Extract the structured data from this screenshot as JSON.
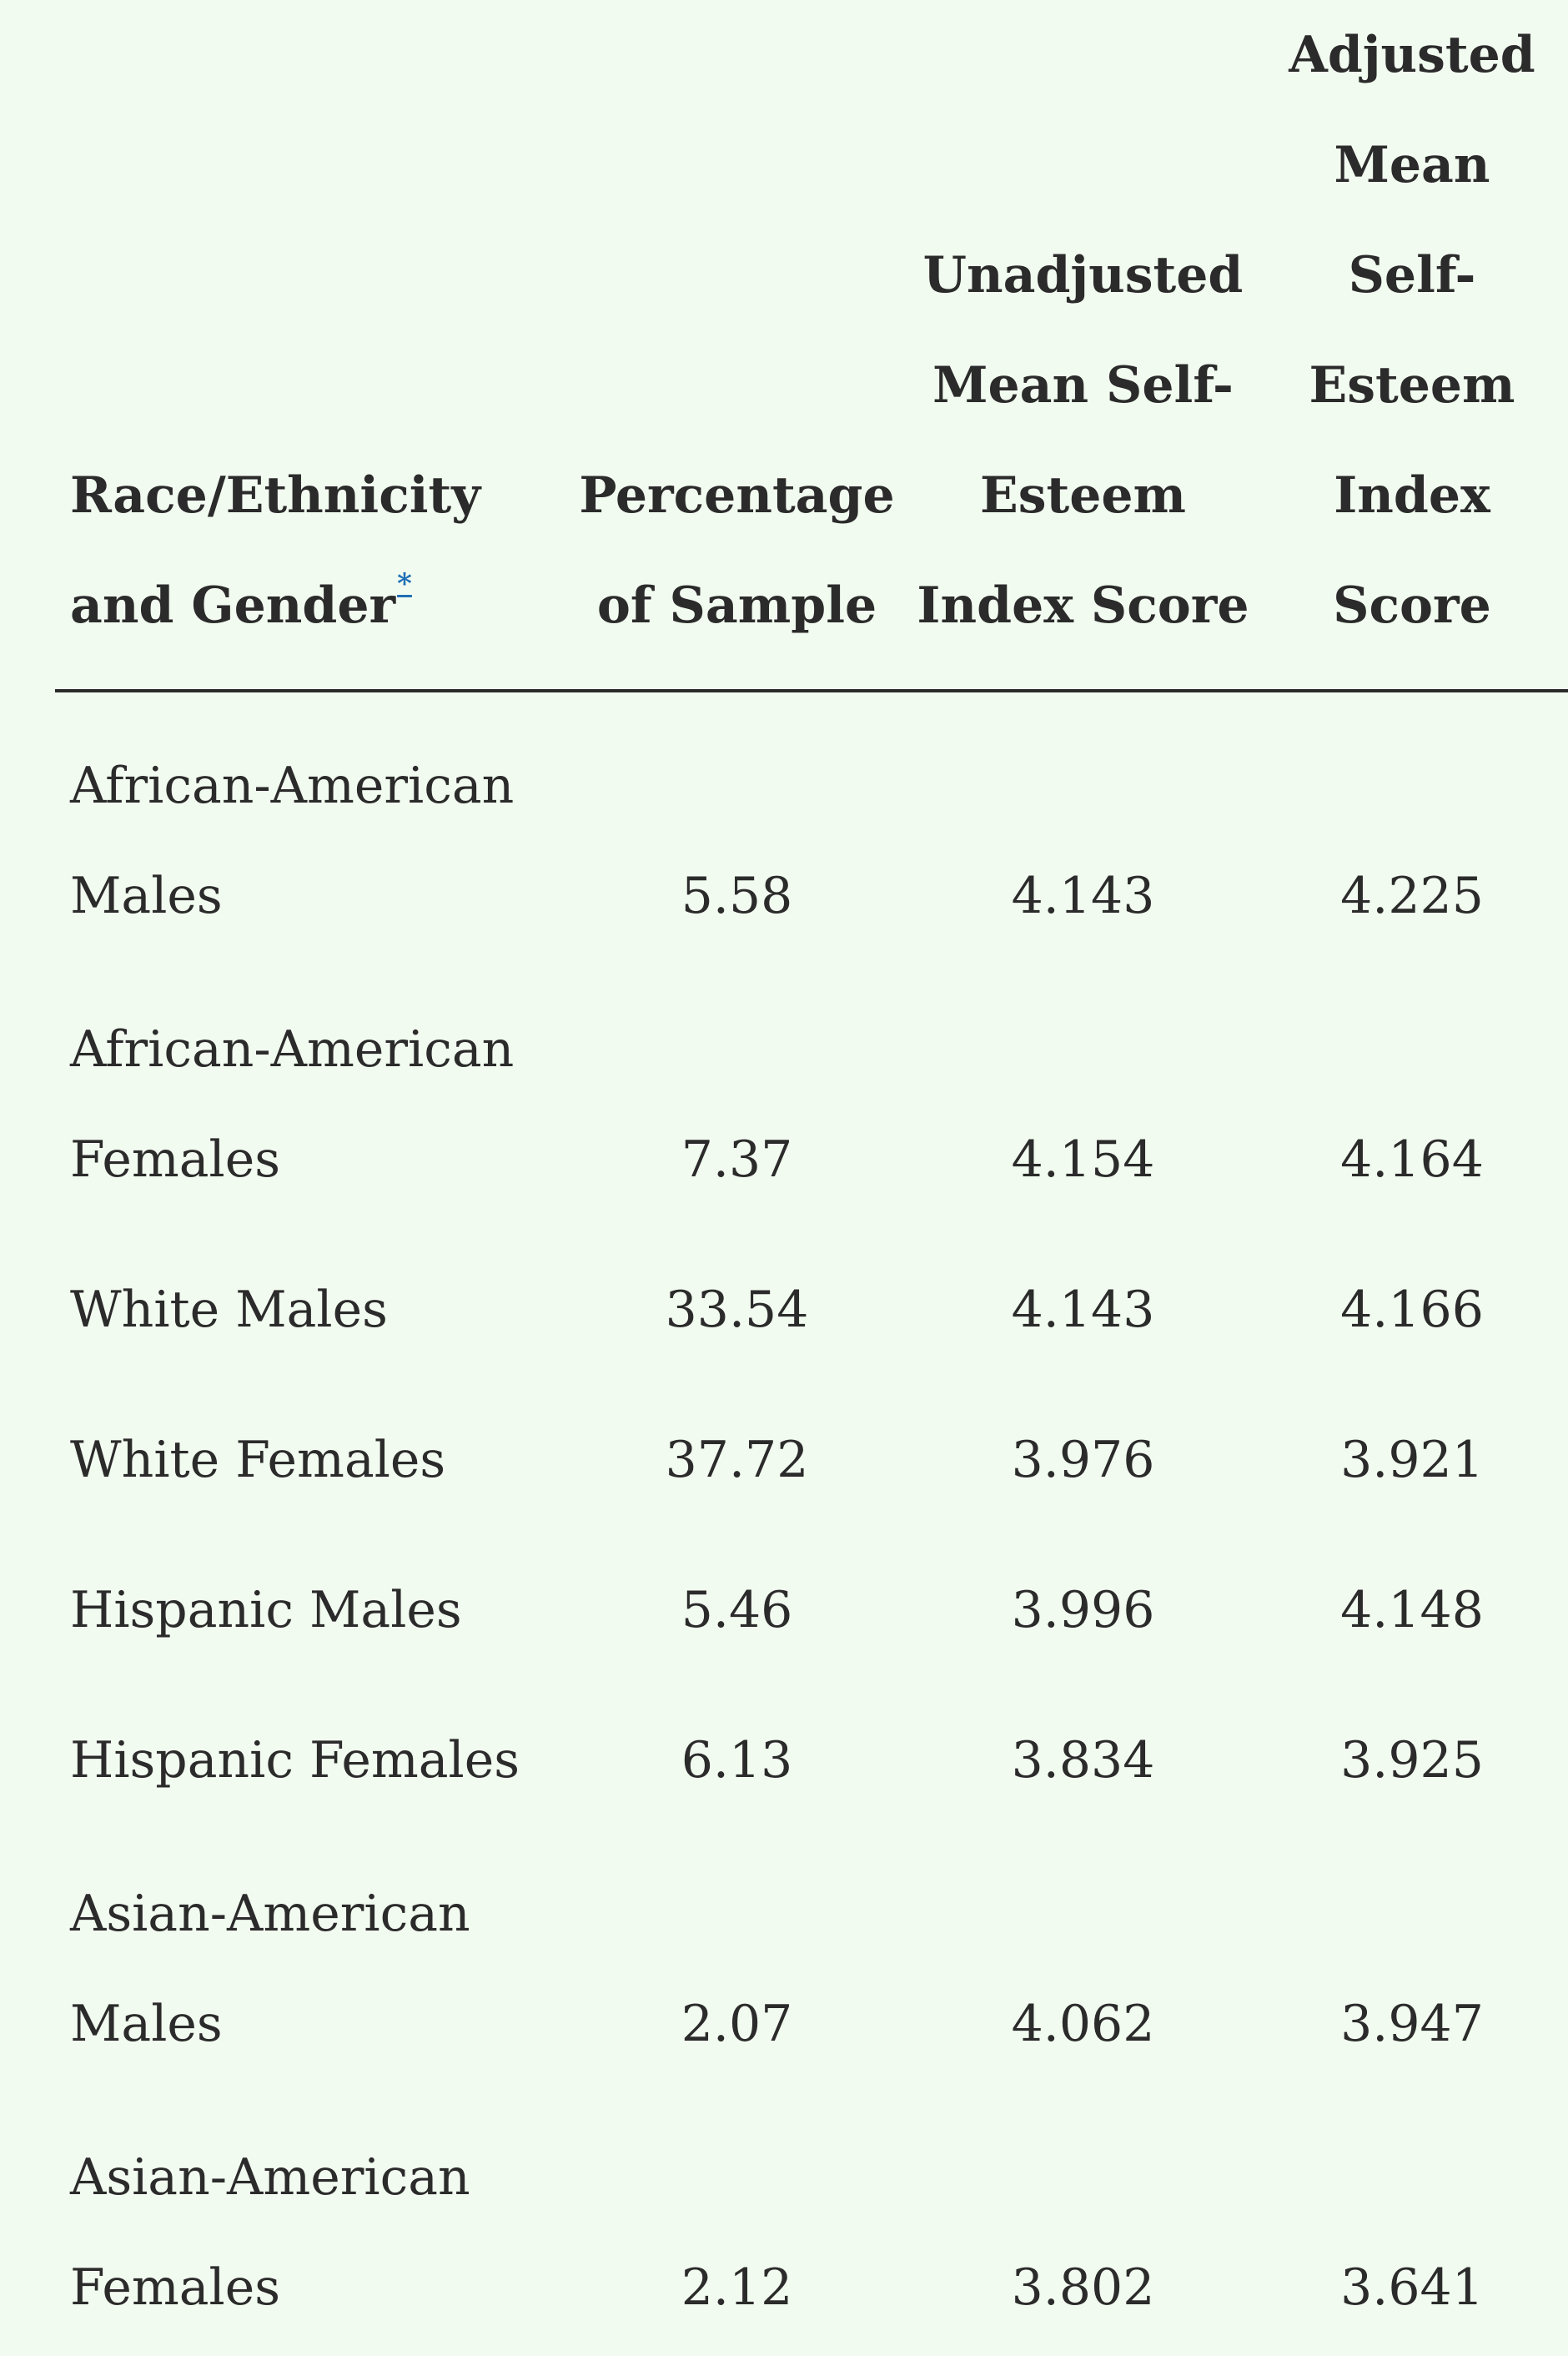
{
  "table": {
    "headers": {
      "label_line1": "Race/Ethnicity",
      "label_line2": "and Gender",
      "label_footnote": "*",
      "percentage": "Percentage of Sample",
      "unadjusted": "Unadjusted Mean Self-Esteem Index Score",
      "adjusted": "Adjusted Mean Self-Esteem Index Score"
    },
    "rows": [
      {
        "label": "African-American Males",
        "percentage": "5.58",
        "unadjusted": "4.143",
        "adjusted": "4.225"
      },
      {
        "label": "African-American Females",
        "percentage": "7.37",
        "unadjusted": "4.154",
        "adjusted": "4.164"
      },
      {
        "label": "White Males",
        "percentage": "33.54",
        "unadjusted": "4.143",
        "adjusted": "4.166"
      },
      {
        "label": "White Females",
        "percentage": "37.72",
        "unadjusted": "3.976",
        "adjusted": "3.921"
      },
      {
        "label": "Hispanic Males",
        "percentage": "5.46",
        "unadjusted": "3.996",
        "adjusted": "4.148"
      },
      {
        "label": "Hispanic Females",
        "percentage": "6.13",
        "unadjusted": "3.834",
        "adjusted": "3.925"
      },
      {
        "label": "Asian-American Males",
        "percentage": "2.07",
        "unadjusted": "4.062",
        "adjusted": "3.947"
      },
      {
        "label": "Asian-American Females",
        "percentage": "2.12",
        "unadjusted": "3.802",
        "adjusted": "3.641"
      }
    ]
  }
}
